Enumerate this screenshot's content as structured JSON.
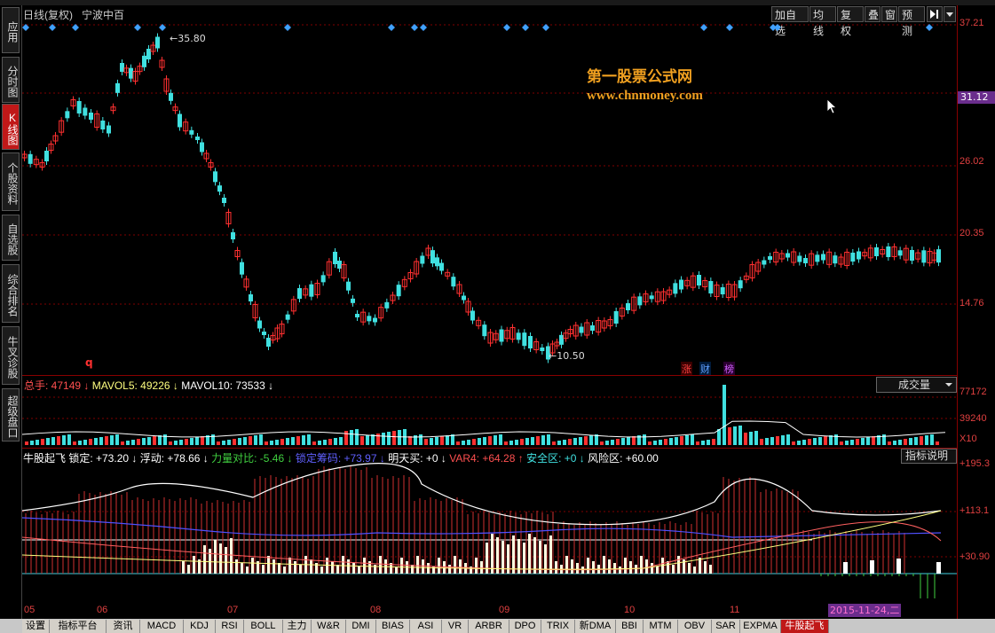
{
  "sidebar": {
    "tabs": [
      {
        "label": "应用",
        "active": false
      },
      {
        "label": "分时图",
        "active": false
      },
      {
        "label": "K线图",
        "active": true
      },
      {
        "label": "个股资料",
        "active": false
      },
      {
        "label": "自选股",
        "active": false
      },
      {
        "label": "综合排名",
        "active": false
      },
      {
        "label": "牛叉诊股",
        "active": false
      },
      {
        "label": "超级盘口",
        "active": false
      }
    ]
  },
  "header": {
    "period": "日线(复权)",
    "stock_name": "宁波中百",
    "buttons": [
      "加自选",
      "均线",
      "复权",
      "叠",
      "窗",
      "预测"
    ]
  },
  "watermark": {
    "line1": "第一股票公式网",
    "line2": "www.chnmoney.com"
  },
  "price": {
    "axis_labels": [
      "37.21",
      "31.12",
      "26.02",
      "20.35",
      "14.76"
    ],
    "current_badge": "31.12",
    "high_label": "35.80",
    "low_label": "10.50",
    "marker_q": "q",
    "badges": [
      "涨",
      "财",
      "榜"
    ]
  },
  "volume": {
    "legend": [
      {
        "text": "总手: 47149",
        "color": "#ff5050"
      },
      {
        "text": "MAVOL5: 49226",
        "color": "#ffff80"
      },
      {
        "text": "MAVOL10: 73533",
        "color": "#ffffff"
      }
    ],
    "dropdown_label": "成交量",
    "axis_labels": [
      "77172",
      "39240"
    ],
    "unit": "X10"
  },
  "indicator": {
    "legend": [
      {
        "text": "牛股起飞 锁定: +73.20",
        "color": "#ffffff"
      },
      {
        "text": "浮动: +78.66",
        "color": "#ffffff"
      },
      {
        "text": "力量对比: -5.46",
        "color": "#40d040"
      },
      {
        "text": "锁定筹码: +73.97",
        "color": "#6060ff"
      },
      {
        "text": "明天买: +0",
        "color": "#ffffff"
      },
      {
        "text": "VAR4: +64.28",
        "color": "#ff5050"
      },
      {
        "text": "安全区: +0",
        "color": "#40e0e0"
      },
      {
        "text": "风险区: +60.00",
        "color": "#ffffff"
      }
    ],
    "explain_button": "指标说明",
    "axis_labels": [
      "+195.3",
      "+113.1",
      "+30.90"
    ]
  },
  "dates": {
    "months": [
      "05",
      "06",
      "07",
      "08",
      "09",
      "10",
      "11"
    ],
    "cursor_date": "2015-11-24,二"
  },
  "bottom_tabs": [
    "设置",
    "指标平台",
    "资讯",
    "MACD",
    "KDJ",
    "RSI",
    "BOLL",
    "主力",
    "W&R",
    "DMI",
    "BIAS",
    "ASI",
    "VR",
    "ARBR",
    "DPO",
    "TRIX",
    "新DMA",
    "BBI",
    "MTM",
    "OBV",
    "SAR",
    "EXPMA",
    "牛股起飞"
  ],
  "active_bottom_tab": "牛股起飞",
  "colors": {
    "up": "#ff3030",
    "down": "#40e0e0",
    "grid": "#800000",
    "accent": "#c01818",
    "cursor_badge": "#6a2d8c"
  }
}
